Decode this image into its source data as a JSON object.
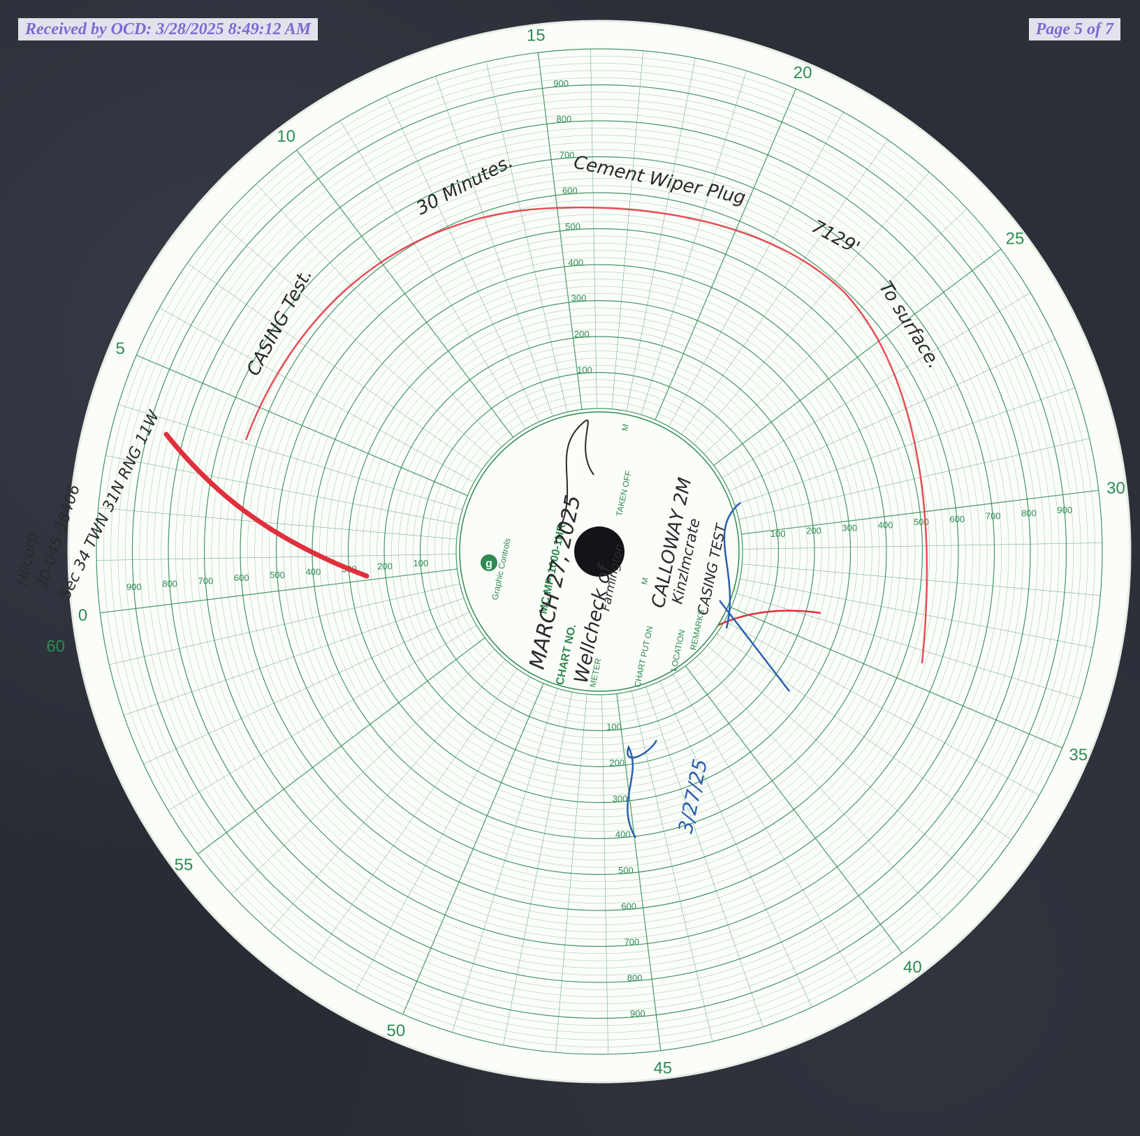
{
  "header": {
    "received_stamp": "Received by OCD: 3/28/2025 8:49:12 AM",
    "page_label": "Page 5 of 7"
  },
  "chart": {
    "hour_labels": [
      "0",
      "5",
      "10",
      "15",
      "20",
      "25",
      "30",
      "35",
      "40",
      "45",
      "50",
      "55",
      "60"
    ],
    "pressure_labels": [
      "100",
      "200",
      "300",
      "400",
      "500",
      "600",
      "700",
      "800",
      "900"
    ],
    "brand": "Graphic Controls",
    "brand_logo_letter": "g",
    "chart_no_label": "CHART NO.",
    "chart_no_value": "MC MP-1000-1HR",
    "meter_label": "METER",
    "chart_put_on_label": "CHART PUT ON",
    "taken_off_label": "TAKEN OFF",
    "m_label": "M",
    "location_label": "LOCATION",
    "remarks_label": "REMARKS"
  },
  "handwriting": {
    "date": "MARCH 27, 2025",
    "meter": "Wellcheck of",
    "meter_sub": "Farmington",
    "location": "CALLOWAY 2M",
    "remarks_1": "Kinzlmcrate",
    "remarks_2": "CASING TEST",
    "margin_1": "Hilcorp",
    "margin_2": "30-045-38406",
    "margin_3": "Sec 34 TWN 31N RNG 11W",
    "note_1": "CASING Test.",
    "note_2": "30 Minutes.",
    "note_3": "Cement Wiper Plug",
    "note_4": "7129'",
    "note_5": "To surface.",
    "initials_date": "3/27/25"
  },
  "colors": {
    "grid": "#2f8a52",
    "paper": "#fbfdf9",
    "pen_red": "#e0303c",
    "ink_black": "#2a2a2a",
    "ink_blue": "#2a5fb0"
  }
}
